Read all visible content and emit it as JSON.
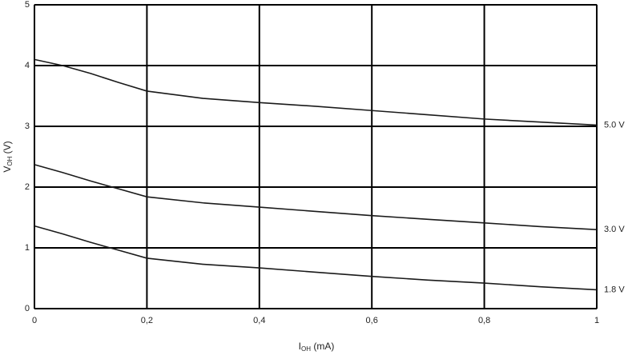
{
  "chart_data": {
    "type": "line",
    "x_label": {
      "main": "I",
      "sub": "OH",
      "unit": " (mA)"
    },
    "y_label": {
      "main": "V",
      "sub": "OH",
      "unit": " (V)"
    },
    "x": [
      0,
      0.05,
      0.1,
      0.15,
      0.2,
      0.3,
      0.4,
      0.5,
      0.6,
      0.7,
      0.8,
      0.9,
      1
    ],
    "series": [
      {
        "name": "5.0 V",
        "color": "#1a1a1a",
        "values": [
          4.1,
          4.0,
          3.87,
          3.72,
          3.58,
          3.46,
          3.39,
          3.33,
          3.26,
          3.19,
          3.12,
          3.07,
          3.02
        ]
      },
      {
        "name": "3.0 V",
        "color": "#1a1a1a",
        "values": [
          2.37,
          2.24,
          2.1,
          1.97,
          1.84,
          1.74,
          1.67,
          1.6,
          1.53,
          1.47,
          1.41,
          1.35,
          1.3
        ]
      },
      {
        "name": "1.8 V",
        "color": "#1a1a1a",
        "values": [
          1.36,
          1.23,
          1.09,
          0.96,
          0.83,
          0.73,
          0.67,
          0.6,
          0.53,
          0.47,
          0.42,
          0.36,
          0.31
        ]
      }
    ],
    "xlim": [
      0,
      1
    ],
    "xticks": [
      0,
      {
        "value": 0.2,
        "label": "0,2"
      },
      {
        "value": 0.4,
        "label": "0,4"
      },
      {
        "value": 0.6,
        "label": "0,6"
      },
      {
        "value": 0.8,
        "label": "0,8"
      },
      1
    ],
    "ylim": [
      0,
      5
    ],
    "yticks": [
      0,
      1,
      2,
      3,
      4,
      5
    ],
    "grid": true
  }
}
